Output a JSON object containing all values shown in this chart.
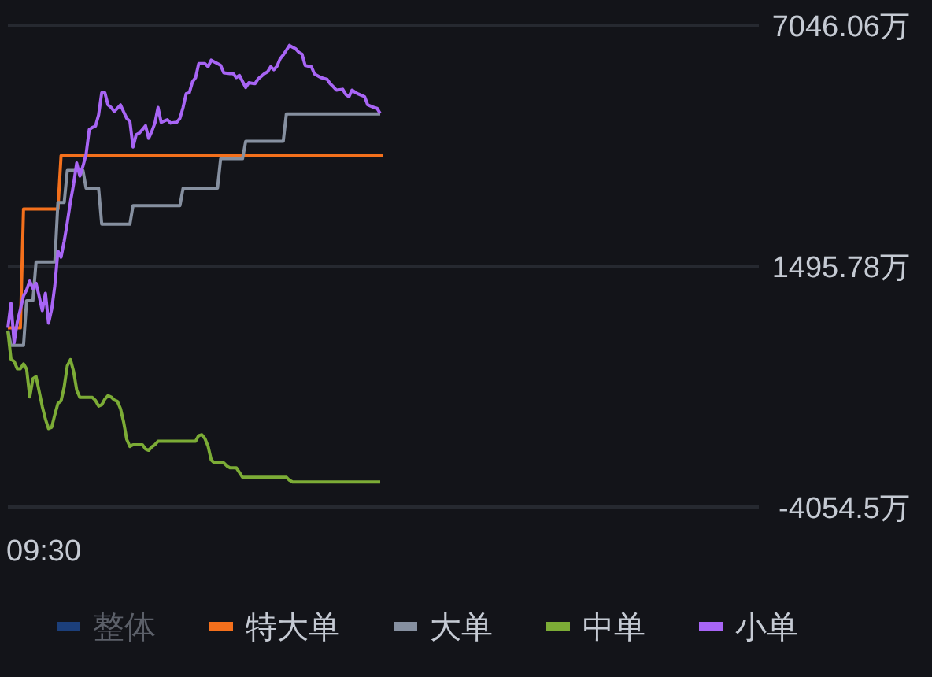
{
  "chart_data": {
    "type": "line",
    "categories": [
      null,
      null,
      null,
      null,
      null,
      null,
      null,
      null,
      null,
      null,
      null,
      null,
      null,
      null,
      null,
      null,
      null,
      null,
      null,
      null,
      null,
      null,
      null,
      null,
      null,
      null,
      null,
      null,
      null,
      null,
      null,
      null,
      null,
      null,
      null,
      null,
      null,
      null,
      null,
      null,
      null,
      null,
      null,
      null,
      null,
      null,
      null,
      null,
      null,
      null,
      null,
      null,
      null,
      null,
      null,
      null,
      null,
      null,
      null,
      null,
      null,
      null,
      null,
      null,
      null,
      null,
      null,
      null,
      null,
      null,
      null,
      null,
      null,
      null,
      null,
      null,
      null,
      null,
      null,
      null,
      null,
      null,
      null,
      null,
      null,
      null,
      null,
      null,
      null,
      null,
      null,
      null,
      null,
      null,
      null,
      null,
      null,
      null,
      null,
      null,
      null,
      null,
      null,
      null,
      null,
      null,
      null,
      null,
      null,
      null,
      null,
      null,
      null,
      null,
      null,
      null,
      null,
      null,
      null,
      null,
      null,
      null,
      null,
      null,
      null,
      null,
      null,
      null,
      null,
      null,
      null,
      null,
      null,
      null,
      null,
      null,
      null,
      null,
      null,
      null,
      null,
      null,
      null,
      null,
      null,
      null,
      null,
      null,
      null,
      null,
      null,
      null,
      null,
      null,
      null,
      null,
      null,
      null,
      null,
      null,
      null,
      null,
      null,
      null,
      null,
      null,
      null,
      null,
      null,
      null,
      null,
      null,
      null,
      null,
      null,
      null,
      null,
      null,
      null,
      null,
      null,
      null,
      null,
      null,
      null,
      null,
      null,
      null,
      null,
      null,
      null,
      null,
      null,
      null,
      null,
      null,
      null,
      null,
      null,
      null,
      null,
      null,
      null,
      null,
      null,
      null,
      null,
      null,
      null,
      null,
      null,
      null,
      null,
      null,
      null,
      null,
      null,
      null,
      null,
      null,
      null,
      null,
      null,
      null,
      null,
      null,
      null,
      null,
      null,
      null,
      null,
      null,
      null,
      null,
      null,
      null,
      null,
      null,
      null,
      null
    ],
    "ylim": [
      -4054.5,
      7046.06
    ],
    "yticks": [
      {
        "value": -4054.5,
        "label": "-4054.5万"
      },
      {
        "value": 1495.78,
        "label": "1495.78万"
      },
      {
        "value": 7046.06,
        "label": "7046.06万"
      }
    ],
    "grid": "y",
    "legend": "bottom",
    "annotations": [
      "09:30"
    ],
    "series": [
      {
        "name": "整体",
        "color": "#1c3f7a",
        "values": [
          null,
          null,
          null,
          null,
          null,
          null,
          null,
          null,
          null,
          null,
          null,
          null,
          null,
          null,
          null,
          null,
          null,
          null,
          null,
          null,
          null,
          null,
          null,
          null,
          null,
          null,
          null,
          null,
          null,
          null,
          null,
          null,
          null,
          null,
          null,
          null,
          null,
          null,
          null,
          null,
          null,
          null,
          null,
          null,
          null,
          null,
          null,
          null,
          null,
          null,
          null,
          null,
          null,
          null,
          null,
          null,
          null,
          null,
          null,
          null,
          null,
          null,
          null,
          null,
          null,
          null,
          null,
          null,
          null,
          null,
          null,
          null,
          null,
          null,
          null,
          null,
          null,
          null,
          null,
          null,
          null,
          null,
          null,
          null,
          null,
          null,
          null,
          null,
          null,
          null,
          null,
          null,
          null,
          null,
          null,
          null,
          null,
          null,
          null,
          null,
          null,
          null,
          null,
          null,
          null,
          null,
          null,
          null,
          null,
          null,
          null,
          null,
          null,
          null,
          null,
          null,
          null,
          null,
          null,
          null,
          null,
          null,
          null,
          null,
          null,
          null,
          null,
          null,
          null,
          null,
          null,
          null,
          null,
          null,
          null,
          null,
          null,
          null,
          null,
          null,
          null,
          null,
          null,
          null,
          null,
          null,
          null,
          null,
          null,
          null,
          null,
          null,
          null,
          null,
          null,
          null,
          null,
          null,
          null,
          null,
          null,
          null,
          null,
          null,
          null,
          null,
          null,
          null,
          null,
          null,
          null,
          null,
          null,
          null,
          null,
          null,
          null,
          null,
          null,
          null,
          null,
          null,
          null,
          null,
          null,
          null,
          null,
          null,
          null,
          null,
          null,
          null,
          null,
          null,
          null,
          null,
          null,
          null,
          null,
          null,
          null,
          null,
          null,
          null,
          null,
          null,
          null,
          null,
          null,
          null,
          null,
          null,
          null,
          null,
          null,
          null,
          null,
          null,
          null,
          null,
          null,
          null,
          null,
          null,
          null,
          null,
          null,
          null,
          null,
          null,
          null,
          null,
          null,
          null,
          null,
          null,
          null,
          null,
          null,
          null
        ]
      },
      {
        "name": "特大单",
        "color": "#f4701c",
        "values": [
          70,
          70,
          70,
          70,
          70,
          2810,
          2810,
          2810,
          2810,
          2810,
          2810,
          2810,
          2810,
          2810,
          2810,
          2810,
          2810,
          4040,
          4040,
          4040,
          4040,
          4040,
          4040,
          4040,
          4040,
          4040,
          4040,
          4040,
          4040,
          4040,
          4040,
          4040,
          4040,
          4040,
          4040,
          4040,
          4040,
          4040,
          4040,
          4040,
          4040,
          4040,
          4040,
          4040,
          4040,
          4040,
          4040,
          4040,
          4040,
          4040,
          4040,
          4040,
          4040,
          4040,
          4040,
          4040,
          4040,
          4040,
          4040,
          4040,
          4040,
          4040,
          4040,
          4040,
          4040,
          4040,
          4040,
          4040,
          4040,
          4040,
          4040,
          4040,
          4040,
          4040,
          4040,
          4040,
          4040,
          4040,
          4040,
          4040,
          4040,
          4040,
          4040,
          4040,
          4040,
          4040,
          4040,
          4040,
          4040,
          4040,
          4040,
          4040,
          4040,
          4040,
          4040,
          4040,
          4040,
          4040,
          4040,
          4040,
          4040,
          4040,
          4040,
          4040,
          4040,
          4040,
          4040,
          4040,
          4040,
          4040,
          4040,
          4040,
          4040,
          4040,
          4040,
          4040,
          4040,
          4040,
          4040,
          4040,
          4040,
          null,
          null,
          null,
          null,
          null,
          null,
          null,
          null,
          null,
          null,
          null,
          null,
          null,
          null,
          null,
          null,
          null,
          null,
          null,
          null,
          null,
          null,
          null,
          null,
          null,
          null,
          null,
          null,
          null,
          null,
          null,
          null,
          null,
          null,
          null,
          null,
          null,
          null,
          null,
          null,
          null,
          null,
          null,
          null,
          null,
          null,
          null,
          null,
          null,
          null,
          null,
          null,
          null,
          null,
          null,
          null,
          null,
          null,
          null,
          null,
          null,
          null,
          null,
          null,
          null,
          null,
          null,
          null,
          null,
          null,
          null,
          null,
          null,
          null,
          null,
          null,
          null,
          null,
          null,
          null,
          null,
          null,
          null,
          null,
          null,
          null,
          null,
          null,
          null,
          null,
          null,
          null,
          null,
          null,
          null,
          null,
          null,
          null,
          null,
          null,
          null,
          null,
          null,
          null,
          null,
          null,
          null,
          null,
          null,
          null,
          null,
          null,
          null,
          null,
          null,
          null,
          null,
          null,
          null
        ]
      },
      {
        "name": "大单",
        "color": "#8690a0",
        "values": [
          10,
          -330,
          -330,
          -330,
          -330,
          -330,
          700,
          700,
          700,
          1590,
          1590,
          1590,
          1590,
          1590,
          1590,
          1590,
          2960,
          2960,
          2960,
          3700,
          3700,
          3700,
          3700,
          3700,
          3700,
          3290,
          3290,
          3290,
          3290,
          3290,
          2460,
          2460,
          2460,
          2460,
          2460,
          2460,
          2460,
          2460,
          2460,
          2460,
          2890,
          2890,
          2890,
          2890,
          2890,
          2890,
          2890,
          2890,
          2890,
          2890,
          2890,
          2890,
          2890,
          2890,
          2890,
          2890,
          3290,
          3290,
          3290,
          3290,
          3290,
          3290,
          3290,
          3290,
          3290,
          3290,
          3290,
          3290,
          3970,
          3970,
          3970,
          3970,
          3970,
          3970,
          3970,
          3970,
          4370,
          4370,
          4370,
          4370,
          4370,
          4370,
          4370,
          4370,
          4370,
          4370,
          4370,
          4370,
          4370,
          5000,
          5000,
          5000,
          5000,
          5000,
          5000,
          5000,
          5000,
          5000,
          5000,
          5000,
          5000,
          5000,
          5000,
          5000,
          5000,
          5000,
          5000,
          5000,
          5000,
          5000,
          5000,
          5000,
          5000,
          5000,
          5000,
          5000,
          5000,
          5000,
          5000,
          5000,
          null,
          null,
          null,
          null,
          null,
          null,
          null,
          null,
          null,
          null,
          null,
          null,
          null,
          null,
          null,
          null,
          null,
          null,
          null,
          null,
          null,
          null,
          null,
          null,
          null,
          null,
          null,
          null,
          null,
          null,
          null,
          null,
          null,
          null,
          null,
          null,
          null,
          null,
          null,
          null,
          null,
          null,
          null,
          null,
          null,
          null,
          null,
          null,
          null,
          null,
          null,
          null,
          null,
          null,
          null,
          null,
          null,
          null,
          null,
          null,
          null,
          null,
          null,
          null,
          null,
          null,
          null,
          null,
          null,
          null,
          null,
          null,
          null,
          null,
          null,
          null,
          null,
          null,
          null,
          null,
          null,
          null,
          null,
          null,
          null,
          null,
          null,
          null,
          null,
          null,
          null,
          null,
          null,
          null,
          null,
          null,
          null,
          null,
          null,
          null,
          null,
          null,
          null,
          null,
          null,
          null,
          null,
          null,
          null,
          null,
          null,
          null,
          null,
          null,
          null,
          null,
          null,
          null,
          null,
          null
        ]
      },
      {
        "name": "中单",
        "color": "#7cac36",
        "values": [
          10,
          -650,
          -700,
          -870,
          -870,
          -760,
          -880,
          -1520,
          -1100,
          -1050,
          -1390,
          -1740,
          -2030,
          -2250,
          -2220,
          -1930,
          -1670,
          -1610,
          -1290,
          -800,
          -660,
          -930,
          -1360,
          -1530,
          -1530,
          -1530,
          -1530,
          -1530,
          -1600,
          -1730,
          -1700,
          -1570,
          -1490,
          -1520,
          -1590,
          -1620,
          -1790,
          -2100,
          -2500,
          -2660,
          -2620,
          -2620,
          -2620,
          -2620,
          -2720,
          -2750,
          -2670,
          -2620,
          -2540,
          -2540,
          -2540,
          -2540,
          -2540,
          -2540,
          -2540,
          -2540,
          -2540,
          -2540,
          -2540,
          -2540,
          -2540,
          -2410,
          -2390,
          -2480,
          -2660,
          -2970,
          -3040,
          -3040,
          -3040,
          -3040,
          -3110,
          -3150,
          -3150,
          -3150,
          -3260,
          -3370,
          -3370,
          -3370,
          -3370,
          -3370,
          -3370,
          -3370,
          -3370,
          -3370,
          -3370,
          -3370,
          -3370,
          -3370,
          -3370,
          -3370,
          -3440,
          -3480,
          -3480,
          -3480,
          -3480,
          -3480,
          -3480,
          -3480,
          -3480,
          -3480,
          -3480,
          -3480,
          -3480,
          -3480,
          -3480,
          -3480,
          -3480,
          -3480,
          -3480,
          -3480,
          -3480,
          -3480,
          -3480,
          -3480,
          -3480,
          -3480,
          -3480,
          -3480,
          -3480,
          -3480,
          null,
          null,
          null,
          null,
          null,
          null,
          null,
          null,
          null,
          null,
          null,
          null,
          null,
          null,
          null,
          null,
          null,
          null,
          null,
          null,
          null,
          null,
          null,
          null,
          null,
          null,
          null,
          null,
          null,
          null,
          null,
          null,
          null,
          null,
          null,
          null,
          null,
          null,
          null,
          null,
          null,
          null,
          null,
          null,
          null,
          null,
          null,
          null,
          null,
          null,
          null,
          null,
          null,
          null,
          null,
          null,
          null,
          null,
          null,
          null,
          null,
          null,
          null,
          null,
          null,
          null,
          null,
          null,
          null,
          null,
          null,
          null,
          null,
          null,
          null,
          null,
          null,
          null,
          null,
          null,
          null,
          null,
          null,
          null,
          null,
          null,
          null,
          null,
          null,
          null,
          null,
          null,
          null,
          null,
          null,
          null,
          null,
          null,
          null,
          null,
          null,
          null,
          null,
          null,
          null,
          null,
          null,
          null,
          null,
          null,
          null,
          null,
          null,
          null,
          null,
          null,
          null,
          null,
          null,
          null
        ]
      },
      {
        "name": "小单",
        "color": "#a865f5",
        "values": [
          70,
          640,
          -270,
          200,
          500,
          810,
          950,
          1150,
          980,
          1100,
          800,
          470,
          870,
          180,
          500,
          1040,
          1840,
          1700,
          2070,
          2500,
          2980,
          3380,
          3870,
          3570,
          3800,
          4070,
          4640,
          4690,
          4720,
          4980,
          5490,
          5490,
          5210,
          5150,
          5060,
          5130,
          5210,
          5050,
          4900,
          4830,
          4240,
          4520,
          4560,
          4640,
          4730,
          4440,
          4600,
          4790,
          5150,
          4810,
          4840,
          4870,
          4790,
          4800,
          4810,
          4900,
          5150,
          5470,
          5490,
          5740,
          5840,
          6160,
          6160,
          6160,
          6090,
          6240,
          6200,
          6160,
          6120,
          5950,
          5940,
          5930,
          5930,
          5840,
          5890,
          5750,
          5610,
          5720,
          5710,
          5700,
          5810,
          5870,
          5930,
          5970,
          6090,
          6020,
          6100,
          6270,
          6360,
          6470,
          6580,
          6540,
          6500,
          6420,
          6380,
          6120,
          6100,
          6090,
          5920,
          5880,
          5840,
          5820,
          5800,
          5700,
          5630,
          5550,
          5560,
          5570,
          5450,
          5400,
          5550,
          5500,
          5460,
          5430,
          5400,
          5210,
          5180,
          5150,
          5130,
          5010,
          null,
          null,
          null,
          null,
          null,
          null,
          null,
          null,
          null,
          null,
          null,
          null,
          null,
          null,
          null,
          null,
          null,
          null,
          null,
          null,
          null,
          null,
          null,
          null,
          null,
          null,
          null,
          null,
          null,
          null,
          null,
          null,
          null,
          null,
          null,
          null,
          null,
          null,
          null,
          null,
          null,
          null,
          null,
          null,
          null,
          null,
          null,
          null,
          null,
          null,
          null,
          null,
          null,
          null,
          null,
          null,
          null,
          null,
          null,
          null,
          null,
          null,
          null,
          null,
          null,
          null,
          null,
          null,
          null,
          null,
          null,
          null,
          null,
          null,
          null,
          null,
          null,
          null,
          null,
          null,
          null,
          null,
          null,
          null,
          null,
          null,
          null,
          null,
          null,
          null,
          null,
          null,
          null,
          null,
          null,
          null,
          null,
          null,
          null,
          null,
          null,
          null,
          null,
          null,
          null,
          null,
          null,
          null,
          null,
          null,
          null,
          null,
          null,
          null,
          null,
          null,
          null,
          null,
          null,
          null
        ]
      }
    ]
  }
}
